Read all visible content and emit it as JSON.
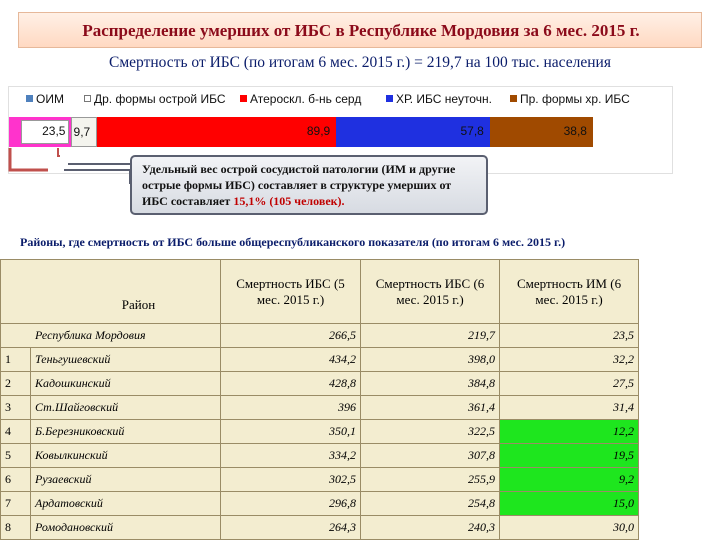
{
  "title": "Распределение умерших от ИБС в Республике Мордовия за 6 мес. 2015 г.",
  "subtitle": "Смертность от ИБС (по итогам 6 мес. 2015 г.) = 219,7 на 100 тыс. населения",
  "colors": {
    "oim": "#4f81bd",
    "other_acute": "#ffffff",
    "atherosclerosis": "#ff0000",
    "chronic_ibs": "#1f30e0",
    "other_chronic": "#a04a00",
    "bar_magenta": "#ff33cc",
    "bar_light": "#f4f4ee",
    "green_highlight": "#1ee61e"
  },
  "legend": [
    {
      "label": "ОИМ",
      "color": "#4f81bd"
    },
    {
      "label": "Др. формы острой ИБС",
      "color": "#ffffff"
    },
    {
      "label": "Атероскл. б-нь серд",
      "color": "#ff0000"
    },
    {
      "label": "ХР. ИБС неуточн.",
      "color": "#1f30e0"
    },
    {
      "label": "Пр. формы хр. ИБС",
      "color": "#a04a00"
    }
  ],
  "chart_data": {
    "type": "bar",
    "stacked": true,
    "orientation": "horizontal",
    "series": [
      {
        "name": "ОИМ",
        "value": 23.5
      },
      {
        "name": "Др. формы острой ИБС",
        "value": 9.7
      },
      {
        "name": "Атероскл. б-нь серд",
        "value": 89.9
      },
      {
        "name": "ХР. ИБС неуточн.",
        "value": 57.8
      },
      {
        "name": "Пр. формы хр. ИБС",
        "value": 38.8
      }
    ],
    "labels": [
      "23,5",
      "9,7",
      "89,9",
      "57,8",
      "38,8"
    ]
  },
  "callout": {
    "text": "Удельный вес острой сосудистой патологии (ИМ и другие острые формы ИБС) составляет в структуре умерших от ИБС составляет ",
    "highlight": "15,1% (105 человек)."
  },
  "subtitle2": "Районы, где смертность от ИБС больше общереспубликанского показателя (по итогам 6 мес. 2015 г.)",
  "table": {
    "headers": [
      "Район",
      "Смертность ИБС (5 мес. 2015 г.)",
      "Смертность ИБС (6 мес. 2015 г.)",
      "Смертность ИМ (6 мес. 2015 г.)"
    ],
    "republic": {
      "name": "Республика Мордовия",
      "v1": "266,5",
      "v2": "219,7",
      "v3": "23,5"
    },
    "rows": [
      {
        "n": "1",
        "name": "Теньгушевский",
        "v1": "434,2",
        "v2": "398,0",
        "v3": "32,2",
        "green": false
      },
      {
        "n": "2",
        "name": "Кадошкинский",
        "v1": "428,8",
        "v2": "384,8",
        "v3": "27,5",
        "green": false
      },
      {
        "n": "3",
        "name": "Ст.Шайговский",
        "v1": "396",
        "v2": "361,4",
        "v3": "31,4",
        "green": false
      },
      {
        "n": "4",
        "name": "Б.Березниковский",
        "v1": "350,1",
        "v2": "322,5",
        "v3": "12,2",
        "green": true
      },
      {
        "n": "5",
        "name": "Ковылкинский",
        "v1": "334,2",
        "v2": "307,8",
        "v3": "19,5",
        "green": true
      },
      {
        "n": "6",
        "name": "Рузаевский",
        "v1": "302,5",
        "v2": "255,9",
        "v3": "9,2",
        "green": true
      },
      {
        "n": "7",
        "name": "Ардатовский",
        "v1": "296,8",
        "v2": "254,8",
        "v3": "15,0",
        "green": true
      },
      {
        "n": "8",
        "name": "Ромодановский",
        "v1": "264,3",
        "v2": "240,3",
        "v3": "30,0",
        "green": false
      }
    ]
  }
}
